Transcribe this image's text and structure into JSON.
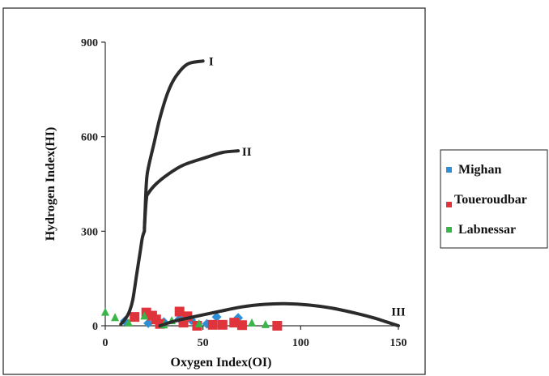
{
  "chart_data": {
    "type": "scatter",
    "xlabel": "Oxygen Index(OI)",
    "ylabel": "Hydrogen Index(HI)",
    "xlim": [
      0,
      150
    ],
    "ylim": [
      0,
      900
    ],
    "x_ticks": [
      0,
      50,
      100,
      150
    ],
    "y_ticks": [
      0,
      300,
      600,
      900
    ],
    "grid": false,
    "legend_position": "right",
    "series": [
      {
        "name": "Mighan",
        "color": "#2e8fd4",
        "marker": "diamond",
        "points": [
          [
            10,
            15
          ],
          [
            22,
            8
          ],
          [
            30,
            12
          ],
          [
            44,
            18
          ],
          [
            57,
            28
          ],
          [
            68,
            25
          ],
          [
            52,
            6
          ],
          [
            38,
            22
          ]
        ]
      },
      {
        "name": "Toueroudbar",
        "color": "#e0343c",
        "marker": "square",
        "points": [
          [
            15,
            28
          ],
          [
            21,
            42
          ],
          [
            24,
            32
          ],
          [
            26,
            20
          ],
          [
            38,
            45
          ],
          [
            42,
            30
          ],
          [
            40,
            10
          ],
          [
            55,
            3
          ],
          [
            60,
            3
          ],
          [
            66,
            10
          ],
          [
            70,
            2
          ],
          [
            88,
            0
          ],
          [
            28,
            6
          ],
          [
            47,
            0
          ]
        ]
      },
      {
        "name": "Labnessar",
        "color": "#3ab54a",
        "marker": "triangle",
        "points": [
          [
            0,
            42
          ],
          [
            5,
            25
          ],
          [
            12,
            8
          ],
          [
            20,
            30
          ],
          [
            34,
            15
          ],
          [
            48,
            5
          ],
          [
            75,
            8
          ],
          [
            82,
            3
          ],
          [
            30,
            2
          ]
        ]
      }
    ],
    "reference_curves": [
      {
        "label": "I",
        "points": [
          [
            20,
            300
          ],
          [
            21,
            450
          ],
          [
            22,
            500
          ],
          [
            25,
            580
          ],
          [
            28,
            660
          ],
          [
            32,
            740
          ],
          [
            36,
            790
          ],
          [
            42,
            830
          ],
          [
            50,
            840
          ]
        ]
      },
      {
        "label": "II",
        "points": [
          [
            20,
            310
          ],
          [
            21,
            400
          ],
          [
            22,
            420
          ],
          [
            26,
            450
          ],
          [
            32,
            480
          ],
          [
            40,
            510
          ],
          [
            52,
            535
          ],
          [
            60,
            550
          ],
          [
            68,
            555
          ]
        ]
      },
      {
        "label": "III",
        "points": [
          [
            28,
            0
          ],
          [
            35,
            14
          ],
          [
            45,
            28
          ],
          [
            58,
            45
          ],
          [
            70,
            60
          ],
          [
            82,
            68
          ],
          [
            92,
            70
          ],
          [
            104,
            66
          ],
          [
            116,
            56
          ],
          [
            128,
            40
          ],
          [
            138,
            24
          ],
          [
            144,
            12
          ],
          [
            150,
            0
          ]
        ]
      }
    ],
    "stem": [
      [
        8,
        5
      ],
      [
        10,
        20
      ],
      [
        12,
        40
      ],
      [
        14,
        80
      ],
      [
        16,
        160
      ],
      [
        17,
        200
      ],
      [
        18,
        240
      ],
      [
        19,
        280
      ],
      [
        20,
        300
      ]
    ],
    "curve_label_positions": {
      "I": [
        53,
        840
      ],
      "II": [
        70,
        553
      ],
      "III": [
        150,
        45
      ]
    }
  }
}
